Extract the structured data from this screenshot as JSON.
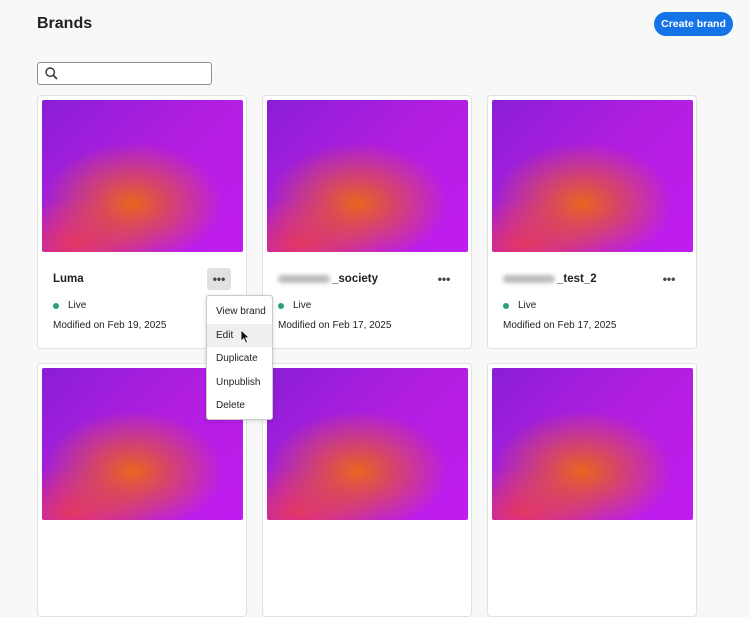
{
  "header": {
    "title": "Brands",
    "create_label": "Create brand"
  },
  "search": {
    "placeholder": "",
    "value": ""
  },
  "cards": [
    {
      "name": "Luma",
      "blurred_prefix": false,
      "status": "Live",
      "modified": "Modified on Feb 19, 2025"
    },
    {
      "name": "_society",
      "blurred_prefix": true,
      "status": "Live",
      "modified": "Modified on Feb 17, 2025"
    },
    {
      "name": "_test_2",
      "blurred_prefix": true,
      "status": "Live",
      "modified": "Modified on Feb 17, 2025"
    }
  ],
  "menu": {
    "items": [
      "View brand",
      "Edit",
      "Duplicate",
      "Unpublish",
      "Delete"
    ],
    "hovered": "Edit"
  },
  "colors": {
    "accent": "#1473e6",
    "live": "#2d9d78"
  }
}
